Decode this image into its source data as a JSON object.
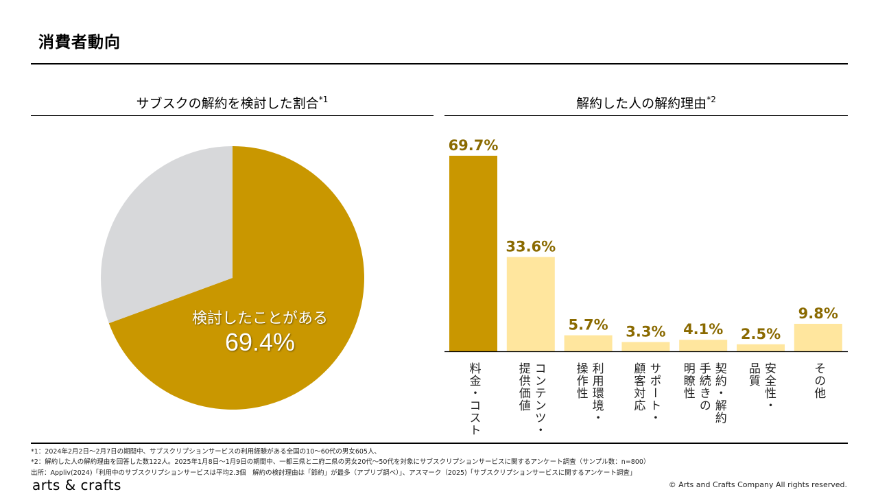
{
  "page": {
    "title": "消費者動向"
  },
  "colors": {
    "accent": "#C99700",
    "light": "#FFE69E",
    "gray": "#D7D8DA",
    "value_text": "#8A6A00"
  },
  "chart_data": [
    {
      "type": "pie",
      "title": "サブスクの解約を検討した割合",
      "title_note": "*1",
      "slices": [
        {
          "label": "検討したことがある",
          "value": 69.4,
          "color": "#C99700"
        },
        {
          "label": "",
          "value": 30.6,
          "color": "#D7D8DA"
        }
      ],
      "annotation": {
        "label": "検討したことがある",
        "value_text": "69.4%"
      },
      "start_angle": "12 o'clock, clockwise"
    },
    {
      "type": "bar",
      "title": "解約した人の解約理由",
      "title_note": "*2",
      "categories": [
        "料金・コスト",
        "コンテンツ・提供価値",
        "利用環境・操作性",
        "サポート・顧客対応",
        "契約・解約手続きの明瞭性",
        "安全性・品質",
        "その他"
      ],
      "category_lines": [
        [
          "料金・コスト"
        ],
        [
          "コンテンツ・",
          "提供価値"
        ],
        [
          "利用環境・",
          "操作性"
        ],
        [
          "サポート・",
          "顧客対応"
        ],
        [
          "契約・解約",
          "手続きの",
          "明瞭性"
        ],
        [
          "安全性・",
          "品質"
        ],
        [
          "その他"
        ]
      ],
      "values": [
        69.7,
        33.6,
        5.7,
        3.3,
        4.1,
        2.5,
        9.8
      ],
      "value_labels": [
        "69.7%",
        "33.6%",
        "5.7%",
        "3.3%",
        "4.1%",
        "2.5%",
        "9.8%"
      ],
      "highlight_index": 0,
      "ylim": [
        0,
        69.7
      ],
      "xlabel": "",
      "ylabel": "",
      "grid": false,
      "y_axis_visible": false
    }
  ],
  "footnotes": {
    "note1": "*1：2024年2月2日～2月7日の期間中、サブスクリプションサービスの利用経験がある全国の10～60代の男女605人、",
    "note2": "*2：解約した人の解約理由を回答した数122人。2025年1月8日～1月9日の期間中、一都三県と二府二県の男女20代～50代を対象にサブスクリプションサービスに関するアンケート調査（サンプル数：n=800）",
    "source": "出所：Appliv(2024)「利用中のサブスクリプションサービスは平均2.3個　解約の検討理由は「節約」が最多（アプリブ調べ）」、アスマーク（2025)「サブスクリプションサービスに関するアンケート調査」"
  },
  "footer": {
    "brand": "arts & crafts",
    "copyright": "© Arts and Crafts Company All rights reserved."
  }
}
